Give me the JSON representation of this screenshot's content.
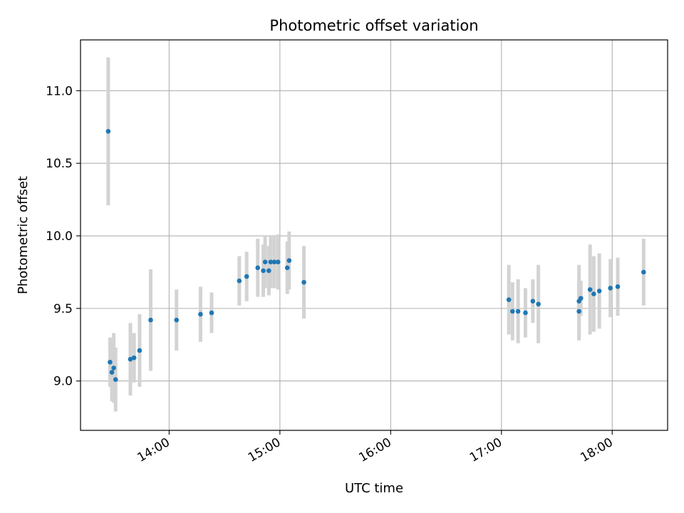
{
  "chart_data": {
    "type": "scatter",
    "title": "Photometric offset variation",
    "xlabel": "UTC time",
    "ylabel": "Photometric offset",
    "x_unit": "UTC time of day",
    "xlim": [
      "13:12",
      "18:30"
    ],
    "ylim": [
      8.66,
      11.35
    ],
    "x_ticks": [
      "14:00",
      "15:00",
      "16:00",
      "17:00",
      "18:00"
    ],
    "y_ticks": [
      "9.0",
      "9.5",
      "10.0",
      "10.5",
      "11.0"
    ],
    "grid": true,
    "colors": {
      "marker": "#1f77b4",
      "errorbar": "#d3d3d3",
      "grid": "#b0b0b0"
    },
    "points": [
      {
        "x": "13:27",
        "y": 10.72,
        "err": 0.51
      },
      {
        "x": "13:28",
        "y": 9.13,
        "err": 0.17
      },
      {
        "x": "13:29",
        "y": 9.06,
        "err": 0.2
      },
      {
        "x": "13:30",
        "y": 9.09,
        "err": 0.24
      },
      {
        "x": "13:31",
        "y": 9.01,
        "err": 0.22
      },
      {
        "x": "13:39",
        "y": 9.15,
        "err": 0.25
      },
      {
        "x": "13:41",
        "y": 9.16,
        "err": 0.17
      },
      {
        "x": "13:44",
        "y": 9.21,
        "err": 0.25
      },
      {
        "x": "13:50",
        "y": 9.42,
        "err": 0.35
      },
      {
        "x": "14:04",
        "y": 9.42,
        "err": 0.21
      },
      {
        "x": "14:17",
        "y": 9.46,
        "err": 0.19
      },
      {
        "x": "14:23",
        "y": 9.47,
        "err": 0.14
      },
      {
        "x": "14:38",
        "y": 9.69,
        "err": 0.17
      },
      {
        "x": "14:42",
        "y": 9.72,
        "err": 0.17
      },
      {
        "x": "14:48",
        "y": 9.78,
        "err": 0.2
      },
      {
        "x": "14:51",
        "y": 9.76,
        "err": 0.18
      },
      {
        "x": "14:52",
        "y": 9.82,
        "err": 0.18
      },
      {
        "x": "14:54",
        "y": 9.76,
        "err": 0.17
      },
      {
        "x": "14:55",
        "y": 9.82,
        "err": 0.18
      },
      {
        "x": "14:57",
        "y": 9.82,
        "err": 0.18
      },
      {
        "x": "14:59",
        "y": 9.82,
        "err": 0.19
      },
      {
        "x": "15:04",
        "y": 9.78,
        "err": 0.18
      },
      {
        "x": "15:05",
        "y": 9.83,
        "err": 0.2
      },
      {
        "x": "15:13",
        "y": 9.68,
        "err": 0.25
      },
      {
        "x": "17:04",
        "y": 9.56,
        "err": 0.24
      },
      {
        "x": "17:06",
        "y": 9.48,
        "err": 0.2
      },
      {
        "x": "17:09",
        "y": 9.48,
        "err": 0.22
      },
      {
        "x": "17:13",
        "y": 9.47,
        "err": 0.17
      },
      {
        "x": "17:17",
        "y": 9.55,
        "err": 0.15
      },
      {
        "x": "17:20",
        "y": 9.53,
        "err": 0.27
      },
      {
        "x": "17:42",
        "y": 9.48,
        "err": 0.2
      },
      {
        "x": "17:42",
        "y": 9.55,
        "err": 0.25
      },
      {
        "x": "17:43",
        "y": 9.57,
        "err": 0.12
      },
      {
        "x": "17:48",
        "y": 9.63,
        "err": 0.31
      },
      {
        "x": "17:50",
        "y": 9.6,
        "err": 0.26
      },
      {
        "x": "17:53",
        "y": 9.62,
        "err": 0.26
      },
      {
        "x": "17:59",
        "y": 9.64,
        "err": 0.2
      },
      {
        "x": "18:03",
        "y": 9.65,
        "err": 0.2
      },
      {
        "x": "18:17",
        "y": 9.75,
        "err": 0.23
      }
    ]
  }
}
